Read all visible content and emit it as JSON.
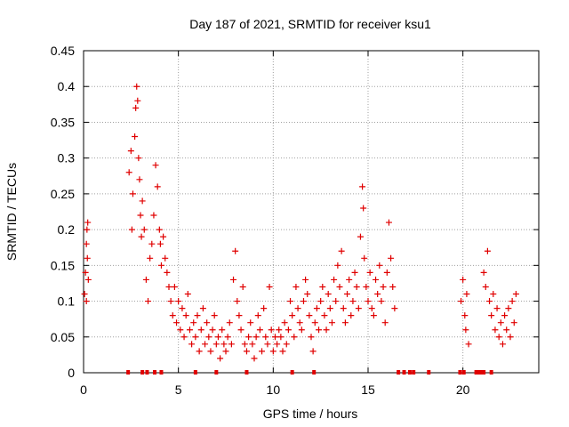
{
  "chart_data": {
    "type": "scatter",
    "title": "Day 187 of 2021, SRMTID for receiver ksu1",
    "xlabel": "GPS time / hours",
    "ylabel": "SRMTID / TECUs",
    "xlim": [
      0,
      24
    ],
    "ylim": [
      0,
      0.45
    ],
    "x_ticks": [
      "0",
      "5",
      "10",
      "15",
      "20"
    ],
    "x_tick_values": [
      0,
      5,
      10,
      15,
      20
    ],
    "y_ticks": [
      "0",
      "0.05",
      "0.1",
      "0.15",
      "0.2",
      "0.25",
      "0.3",
      "0.35",
      "0.4",
      "0.45"
    ],
    "y_tick_values": [
      0,
      0.05,
      0.1,
      0.15,
      0.2,
      0.25,
      0.3,
      0.35,
      0.4,
      0.45
    ],
    "grid": true,
    "series": [
      {
        "name": "SRMTID",
        "marker": "+",
        "color": "#e00000",
        "points": [
          [
            0.05,
            0.11
          ],
          [
            0.1,
            0.14
          ],
          [
            0.15,
            0.18
          ],
          [
            0.18,
            0.2
          ],
          [
            0.2,
            0.16
          ],
          [
            0.25,
            0.13
          ],
          [
            0.15,
            0.1
          ],
          [
            0.22,
            0.21
          ],
          [
            2.4,
            0.28
          ],
          [
            2.5,
            0.31
          ],
          [
            2.55,
            0.2
          ],
          [
            2.6,
            0.25
          ],
          [
            2.7,
            0.33
          ],
          [
            2.75,
            0.37
          ],
          [
            2.8,
            0.4
          ],
          [
            2.85,
            0.38
          ],
          [
            2.9,
            0.3
          ],
          [
            2.95,
            0.27
          ],
          [
            3.0,
            0.22
          ],
          [
            3.05,
            0.19
          ],
          [
            3.1,
            0.24
          ],
          [
            3.2,
            0.2
          ],
          [
            3.3,
            0.13
          ],
          [
            3.4,
            0.1
          ],
          [
            3.5,
            0.16
          ],
          [
            3.6,
            0.18
          ],
          [
            3.7,
            0.22
          ],
          [
            3.8,
            0.29
          ],
          [
            3.9,
            0.26
          ],
          [
            4.0,
            0.2
          ],
          [
            4.05,
            0.18
          ],
          [
            4.1,
            0.15
          ],
          [
            4.2,
            0.19
          ],
          [
            4.3,
            0.16
          ],
          [
            4.4,
            0.14
          ],
          [
            4.5,
            0.12
          ],
          [
            4.6,
            0.1
          ],
          [
            4.7,
            0.08
          ],
          [
            4.8,
            0.12
          ],
          [
            4.9,
            0.07
          ],
          [
            5.0,
            0.1
          ],
          [
            5.1,
            0.06
          ],
          [
            5.2,
            0.09
          ],
          [
            5.3,
            0.05
          ],
          [
            5.4,
            0.08
          ],
          [
            5.5,
            0.11
          ],
          [
            5.6,
            0.06
          ],
          [
            5.7,
            0.04
          ],
          [
            5.8,
            0.07
          ],
          [
            5.9,
            0.05
          ],
          [
            6.0,
            0.08
          ],
          [
            6.1,
            0.03
          ],
          [
            6.2,
            0.06
          ],
          [
            6.3,
            0.09
          ],
          [
            6.4,
            0.04
          ],
          [
            6.5,
            0.07
          ],
          [
            6.6,
            0.05
          ],
          [
            6.7,
            0.03
          ],
          [
            6.8,
            0.06
          ],
          [
            6.9,
            0.08
          ],
          [
            7.0,
            0.04
          ],
          [
            7.1,
            0.05
          ],
          [
            7.2,
            0.02
          ],
          [
            7.3,
            0.06
          ],
          [
            7.4,
            0.04
          ],
          [
            7.5,
            0.03
          ],
          [
            7.6,
            0.05
          ],
          [
            7.7,
            0.07
          ],
          [
            7.8,
            0.04
          ],
          [
            7.9,
            0.13
          ],
          [
            8.0,
            0.17
          ],
          [
            8.1,
            0.1
          ],
          [
            8.2,
            0.08
          ],
          [
            8.3,
            0.06
          ],
          [
            8.4,
            0.12
          ],
          [
            8.5,
            0.04
          ],
          [
            8.6,
            0.03
          ],
          [
            8.7,
            0.05
          ],
          [
            8.8,
            0.07
          ],
          [
            8.9,
            0.04
          ],
          [
            9.0,
            0.02
          ],
          [
            9.1,
            0.05
          ],
          [
            9.2,
            0.08
          ],
          [
            9.3,
            0.06
          ],
          [
            9.4,
            0.03
          ],
          [
            9.5,
            0.09
          ],
          [
            9.6,
            0.05
          ],
          [
            9.7,
            0.04
          ],
          [
            9.8,
            0.12
          ],
          [
            9.9,
            0.06
          ],
          [
            10.0,
            0.03
          ],
          [
            10.1,
            0.05
          ],
          [
            10.2,
            0.04
          ],
          [
            10.3,
            0.06
          ],
          [
            10.4,
            0.05
          ],
          [
            10.5,
            0.03
          ],
          [
            10.6,
            0.07
          ],
          [
            10.7,
            0.04
          ],
          [
            10.8,
            0.06
          ],
          [
            10.9,
            0.1
          ],
          [
            11.0,
            0.08
          ],
          [
            11.1,
            0.05
          ],
          [
            11.2,
            0.12
          ],
          [
            11.3,
            0.09
          ],
          [
            11.4,
            0.07
          ],
          [
            11.5,
            0.06
          ],
          [
            11.6,
            0.1
          ],
          [
            11.7,
            0.13
          ],
          [
            11.8,
            0.11
          ],
          [
            11.9,
            0.08
          ],
          [
            12.0,
            0.05
          ],
          [
            12.1,
            0.03
          ],
          [
            12.2,
            0.07
          ],
          [
            12.3,
            0.09
          ],
          [
            12.4,
            0.06
          ],
          [
            12.5,
            0.1
          ],
          [
            12.6,
            0.12
          ],
          [
            12.7,
            0.08
          ],
          [
            12.8,
            0.06
          ],
          [
            12.9,
            0.11
          ],
          [
            13.0,
            0.09
          ],
          [
            13.1,
            0.07
          ],
          [
            13.2,
            0.13
          ],
          [
            13.3,
            0.1
          ],
          [
            13.4,
            0.15
          ],
          [
            13.5,
            0.12
          ],
          [
            13.6,
            0.17
          ],
          [
            13.7,
            0.09
          ],
          [
            13.8,
            0.07
          ],
          [
            13.9,
            0.11
          ],
          [
            14.0,
            0.13
          ],
          [
            14.1,
            0.08
          ],
          [
            14.2,
            0.1
          ],
          [
            14.3,
            0.14
          ],
          [
            14.4,
            0.12
          ],
          [
            14.5,
            0.09
          ],
          [
            14.6,
            0.19
          ],
          [
            14.7,
            0.26
          ],
          [
            14.75,
            0.23
          ],
          [
            14.8,
            0.16
          ],
          [
            14.9,
            0.12
          ],
          [
            15.0,
            0.1
          ],
          [
            15.1,
            0.14
          ],
          [
            15.2,
            0.09
          ],
          [
            15.3,
            0.08
          ],
          [
            15.4,
            0.13
          ],
          [
            15.5,
            0.11
          ],
          [
            15.6,
            0.15
          ],
          [
            15.7,
            0.1
          ],
          [
            15.8,
            0.12
          ],
          [
            15.9,
            0.07
          ],
          [
            16.0,
            0.14
          ],
          [
            16.1,
            0.21
          ],
          [
            16.2,
            0.16
          ],
          [
            16.3,
            0.12
          ],
          [
            16.4,
            0.09
          ],
          [
            19.9,
            0.1
          ],
          [
            20.0,
            0.13
          ],
          [
            20.1,
            0.08
          ],
          [
            20.15,
            0.06
          ],
          [
            20.2,
            0.11
          ],
          [
            20.3,
            0.04
          ],
          [
            21.1,
            0.14
          ],
          [
            21.2,
            0.12
          ],
          [
            21.3,
            0.17
          ],
          [
            21.4,
            0.1
          ],
          [
            21.5,
            0.08
          ],
          [
            21.6,
            0.11
          ],
          [
            21.7,
            0.06
          ],
          [
            21.8,
            0.09
          ],
          [
            21.9,
            0.05
          ],
          [
            22.0,
            0.07
          ],
          [
            22.1,
            0.04
          ],
          [
            22.2,
            0.08
          ],
          [
            22.3,
            0.06
          ],
          [
            22.4,
            0.09
          ],
          [
            22.5,
            0.05
          ],
          [
            22.6,
            0.1
          ],
          [
            22.7,
            0.07
          ],
          [
            22.8,
            0.11
          ]
        ]
      }
    ],
    "baseline_gap_marks_hours": [
      2.35,
      3.1,
      3.35,
      3.75,
      4.1,
      5.9,
      7.0,
      8.6,
      11.0,
      12.15,
      16.6,
      16.9,
      17.2,
      17.4,
      18.2,
      19.85,
      20.05,
      20.7,
      20.85,
      20.95,
      21.1,
      21.5
    ]
  }
}
